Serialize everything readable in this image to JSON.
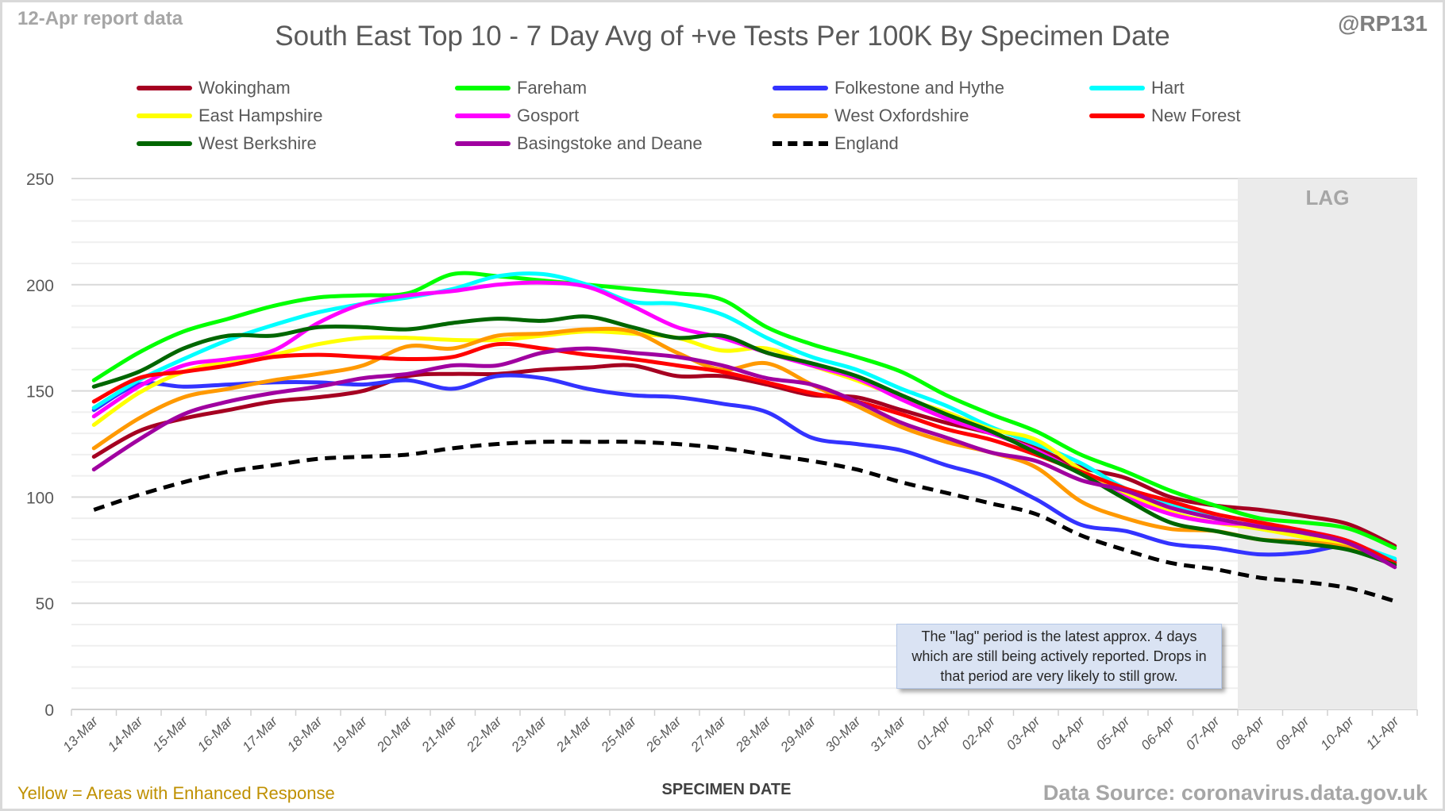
{
  "header": {
    "report_date": "12-Apr report data",
    "handle": "@RP131",
    "title": "South East Top 10 - 7 Day Avg of +ve Tests Per 100K By Specimen Date"
  },
  "footer": {
    "enhanced_note": "Yellow = Areas with Enhanced Response",
    "source": "Data Source: coronavirus.data.gov.uk"
  },
  "annotation": {
    "text": "The \"lag\" period is the latest approx. 4 days which are still being actively reported. Drops in that period are very likely to still grow."
  },
  "chart_data": {
    "type": "line",
    "title": "South East Top 10 - 7 Day Avg of +ve Tests Per 100K By Specimen Date",
    "xlabel": "SPECIMEN DATE",
    "ylabel": "",
    "ylim": [
      0,
      250
    ],
    "yticks": [
      0,
      50,
      100,
      150,
      200,
      250
    ],
    "minor_grid_step": 10,
    "grid": true,
    "legend_position": "top",
    "lag_region": {
      "label": "LAG",
      "from": "08-Apr",
      "to": "11-Apr",
      "color": "#ebebeb"
    },
    "categories": [
      "13-Mar",
      "14-Mar",
      "15-Mar",
      "16-Mar",
      "17-Mar",
      "18-Mar",
      "19-Mar",
      "20-Mar",
      "21-Mar",
      "22-Mar",
      "23-Mar",
      "24-Mar",
      "25-Mar",
      "26-Mar",
      "27-Mar",
      "28-Mar",
      "29-Mar",
      "30-Mar",
      "31-Mar",
      "01-Apr",
      "02-Apr",
      "03-Apr",
      "04-Apr",
      "05-Apr",
      "06-Apr",
      "07-Apr",
      "08-Apr",
      "09-Apr",
      "10-Apr",
      "11-Apr"
    ],
    "series": [
      {
        "name": "Wokingham",
        "color": "#a50021",
        "dashed": false,
        "values": [
          119,
          131,
          137,
          141,
          145,
          147,
          150,
          157,
          158,
          158,
          160,
          161,
          162,
          157,
          157,
          153,
          148,
          147,
          141,
          135,
          130,
          123,
          114,
          109,
          100,
          96,
          94,
          91,
          87,
          77
        ]
      },
      {
        "name": "Fareham",
        "color": "#00ff00",
        "dashed": false,
        "values": [
          155,
          168,
          178,
          184,
          190,
          194,
          195,
          196,
          205,
          204,
          202,
          200,
          198,
          196,
          193,
          180,
          172,
          166,
          159,
          148,
          139,
          131,
          120,
          112,
          103,
          96,
          90,
          88,
          85,
          76
        ]
      },
      {
        "name": "Folkestone and Hythe",
        "color": "#3333ff",
        "dashed": false,
        "values": [
          141,
          153,
          152,
          153,
          154,
          154,
          153,
          155,
          151,
          157,
          156,
          151,
          148,
          147,
          144,
          140,
          128,
          125,
          122,
          115,
          109,
          99,
          87,
          84,
          78,
          76,
          73,
          74,
          77,
          70
        ]
      },
      {
        "name": "Hart",
        "color": "#00ffff",
        "dashed": false,
        "values": [
          142,
          155,
          165,
          174,
          181,
          187,
          191,
          194,
          198,
          204,
          205,
          200,
          192,
          191,
          186,
          175,
          166,
          160,
          151,
          143,
          133,
          125,
          116,
          104,
          97,
          90,
          85,
          82,
          78,
          71
        ]
      },
      {
        "name": "East Hampshire",
        "color": "#ffff00",
        "dashed": false,
        "values": [
          134,
          149,
          159,
          164,
          167,
          172,
          175,
          175,
          174,
          174,
          176,
          178,
          177,
          175,
          169,
          170,
          162,
          155,
          147,
          140,
          132,
          127,
          113,
          102,
          93,
          88,
          85,
          81,
          77,
          69
        ]
      },
      {
        "name": "Gosport",
        "color": "#ff00ff",
        "dashed": false,
        "values": [
          138,
          152,
          162,
          165,
          169,
          182,
          191,
          195,
          197,
          200,
          201,
          199,
          190,
          180,
          175,
          168,
          162,
          156,
          146,
          137,
          130,
          122,
          111,
          100,
          92,
          88,
          87,
          84,
          79,
          69
        ]
      },
      {
        "name": "West Oxfordshire",
        "color": "#ff9900",
        "dashed": false,
        "values": [
          123,
          137,
          147,
          151,
          155,
          158,
          162,
          171,
          170,
          176,
          177,
          179,
          178,
          168,
          160,
          163,
          153,
          143,
          133,
          126,
          121,
          114,
          98,
          90,
          85,
          84,
          80,
          79,
          76,
          69
        ]
      },
      {
        "name": "New Forest",
        "color": "#ff0000",
        "dashed": false,
        "values": [
          145,
          156,
          159,
          162,
          166,
          167,
          166,
          165,
          166,
          172,
          170,
          167,
          165,
          162,
          159,
          154,
          149,
          145,
          139,
          132,
          127,
          120,
          112,
          104,
          98,
          92,
          88,
          84,
          79,
          69
        ]
      },
      {
        "name": "West Berkshire",
        "color": "#006600",
        "dashed": false,
        "values": [
          152,
          159,
          170,
          176,
          176,
          180,
          180,
          179,
          182,
          184,
          183,
          185,
          180,
          175,
          176,
          168,
          163,
          157,
          148,
          139,
          131,
          121,
          111,
          99,
          88,
          84,
          80,
          78,
          75,
          68
        ]
      },
      {
        "name": "Basingstoke and Deane",
        "color": "#a000a0",
        "dashed": false,
        "values": [
          113,
          127,
          139,
          145,
          149,
          152,
          156,
          158,
          162,
          162,
          168,
          170,
          168,
          166,
          162,
          156,
          153,
          145,
          135,
          128,
          121,
          117,
          108,
          103,
          95,
          90,
          86,
          83,
          78,
          67
        ]
      },
      {
        "name": "England",
        "color": "#000000",
        "dashed": true,
        "values": [
          94,
          101,
          107,
          112,
          115,
          118,
          119,
          120,
          123,
          125,
          126,
          126,
          126,
          125,
          123,
          120,
          117,
          113,
          107,
          102,
          97,
          92,
          82,
          75,
          69,
          66,
          62,
          60,
          57,
          51
        ]
      }
    ]
  }
}
